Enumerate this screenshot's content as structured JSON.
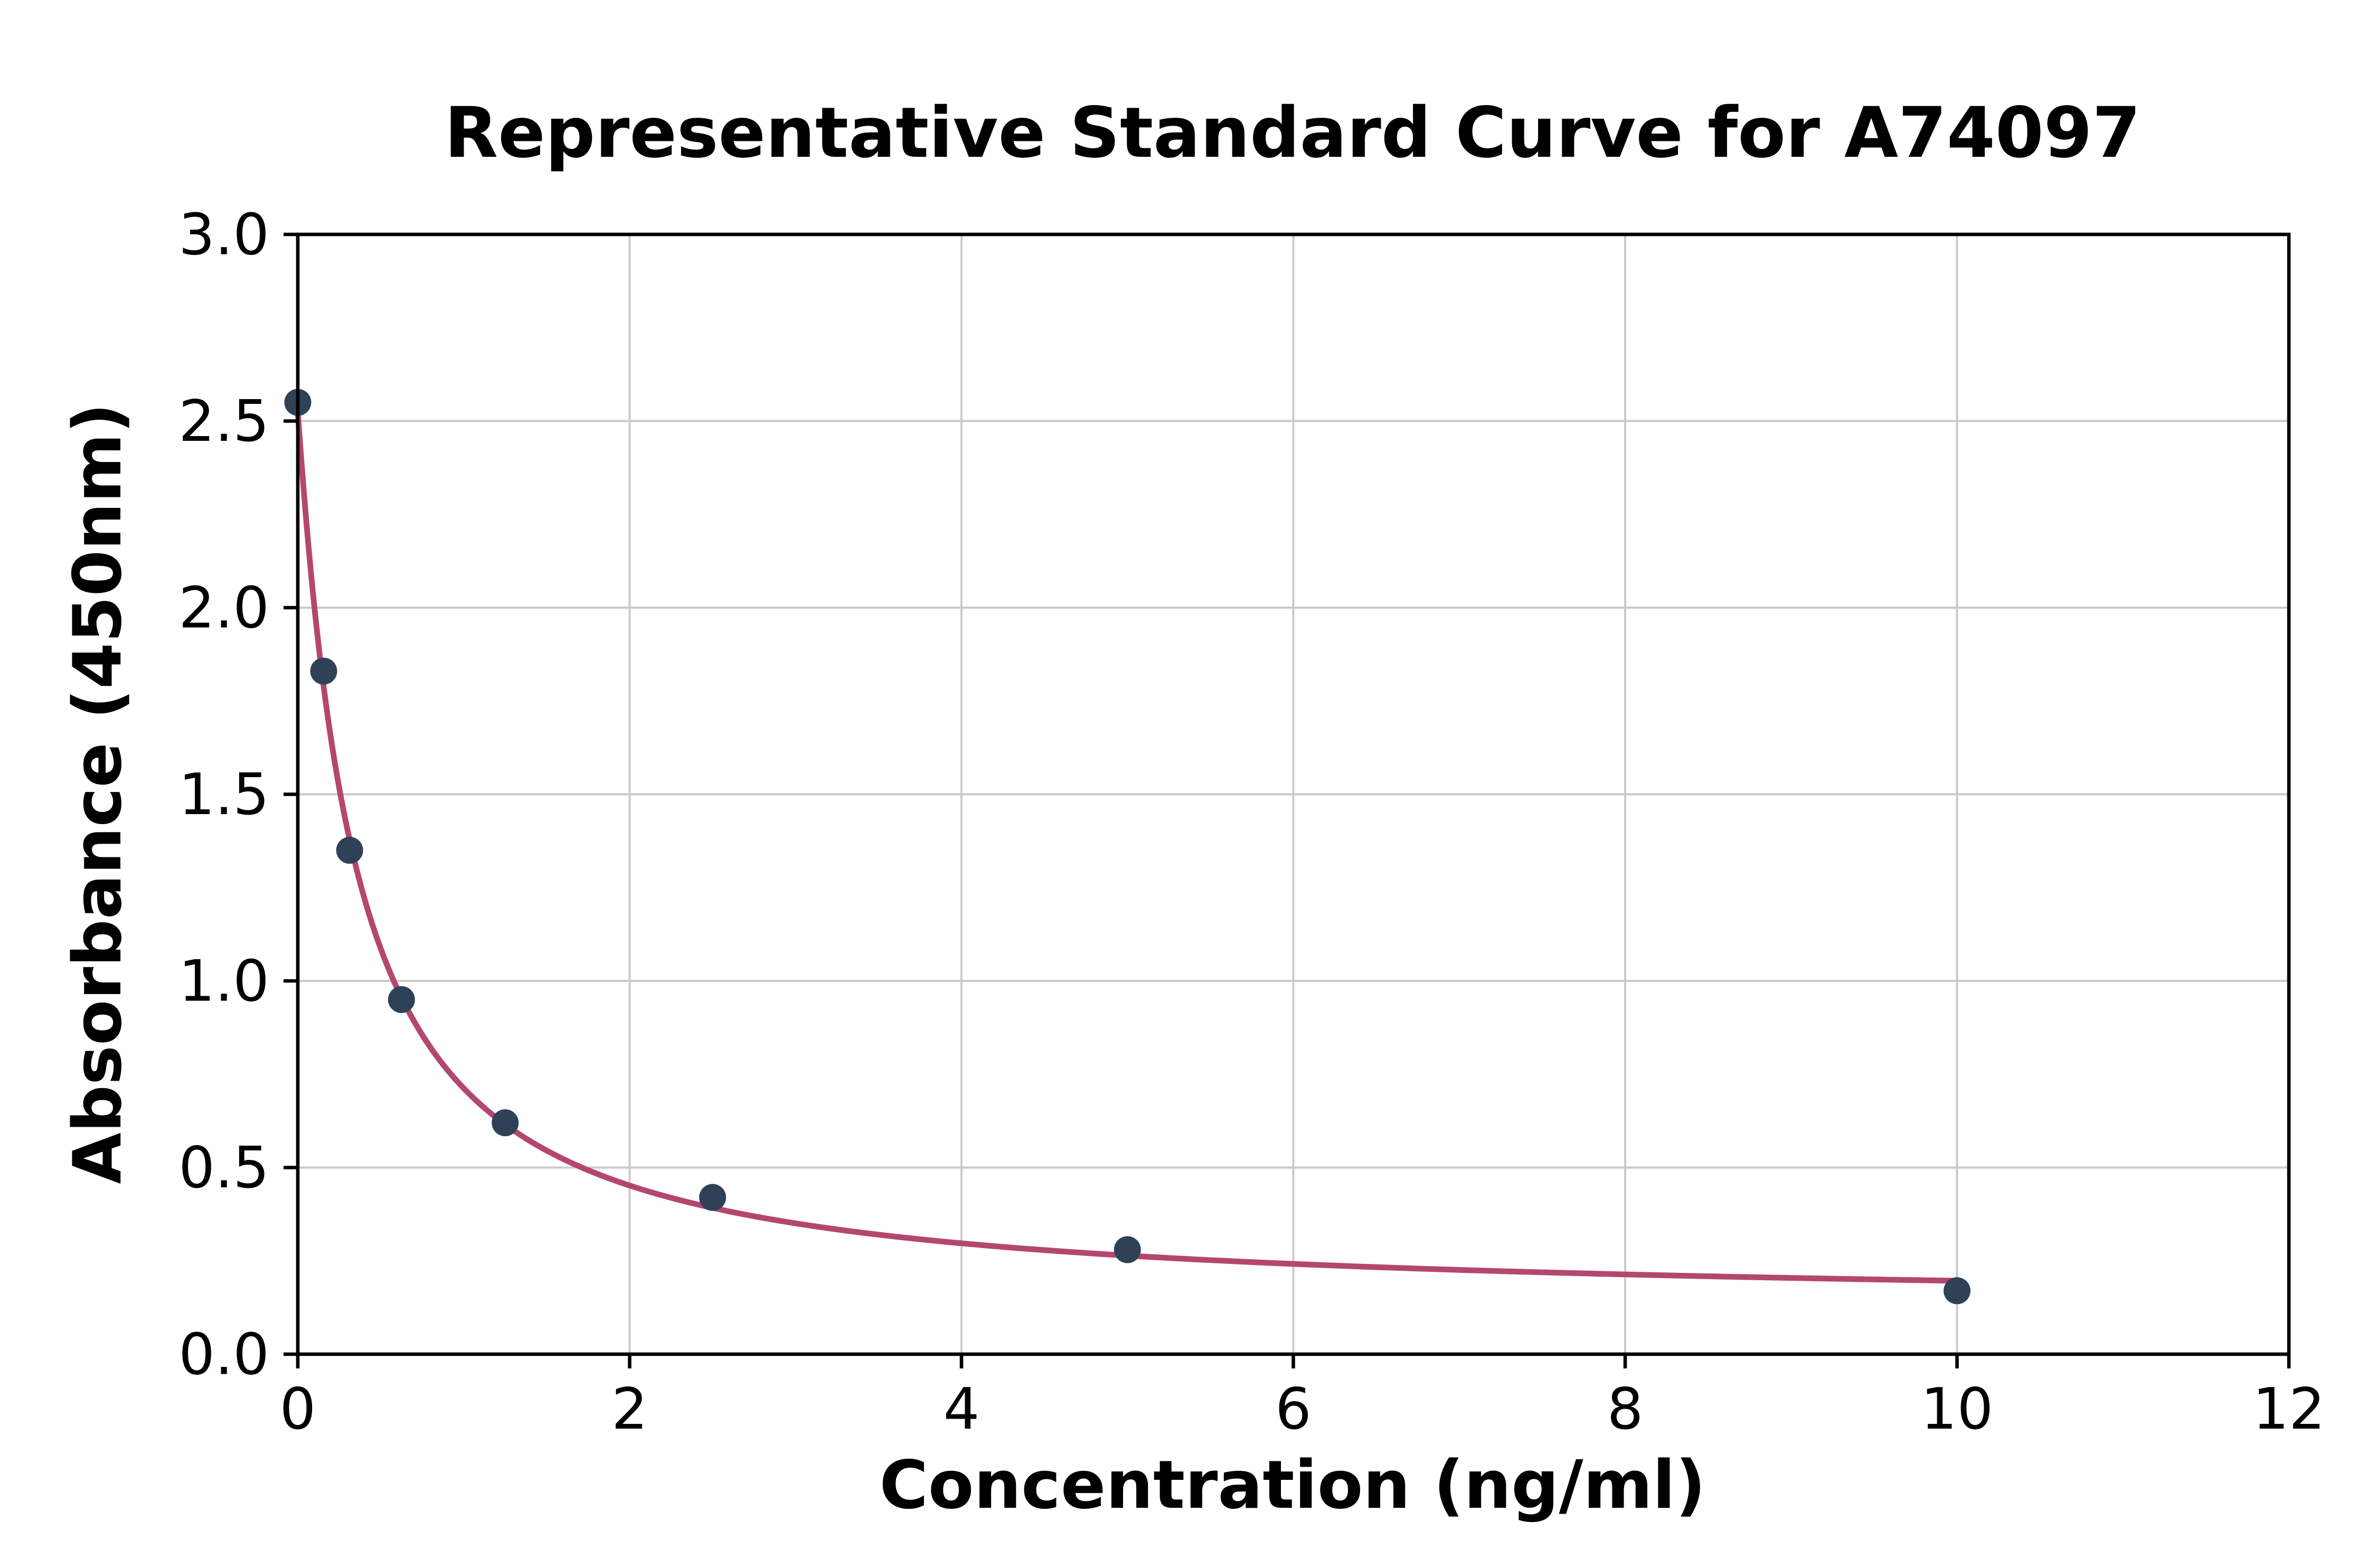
{
  "chart_data": {
    "type": "scatter",
    "title": "Representative Standard Curve for A74097",
    "xlabel": "Concentration (ng/ml)",
    "ylabel": "Absorbance (450nm)",
    "xlim": [
      0,
      12
    ],
    "ylim": [
      0,
      3
    ],
    "grid": true,
    "legend": "none",
    "xticks": {
      "values": [
        0,
        2,
        4,
        6,
        8,
        10,
        12
      ],
      "labels": [
        "0",
        "2",
        "4",
        "6",
        "8",
        "10",
        "12"
      ]
    },
    "yticks": {
      "values": [
        0.0,
        0.5,
        1.0,
        1.5,
        2.0,
        2.5,
        3.0
      ],
      "labels": [
        "0.0",
        "0.5",
        "1.0",
        "1.5",
        "2.0",
        "2.5",
        "3.0"
      ]
    },
    "points": [
      {
        "x": 0,
        "y": 2.55
      },
      {
        "x": 0.156,
        "y": 1.83
      },
      {
        "x": 0.3125,
        "y": 1.35
      },
      {
        "x": 0.625,
        "y": 0.95
      },
      {
        "x": 1.25,
        "y": 0.62
      },
      {
        "x": 2.5,
        "y": 0.42
      },
      {
        "x": 5,
        "y": 0.28
      },
      {
        "x": 10,
        "y": 0.17
      }
    ],
    "fit": {
      "model": "4PL",
      "a": 2.52,
      "b": 1.05,
      "c": 0.34,
      "d": 0.13,
      "xmin": 0,
      "xmax": 10
    },
    "colors": {
      "curve": "#b3476f",
      "point": "#2e4156",
      "grid": "#c9c9c9",
      "axis": "#000000"
    }
  }
}
